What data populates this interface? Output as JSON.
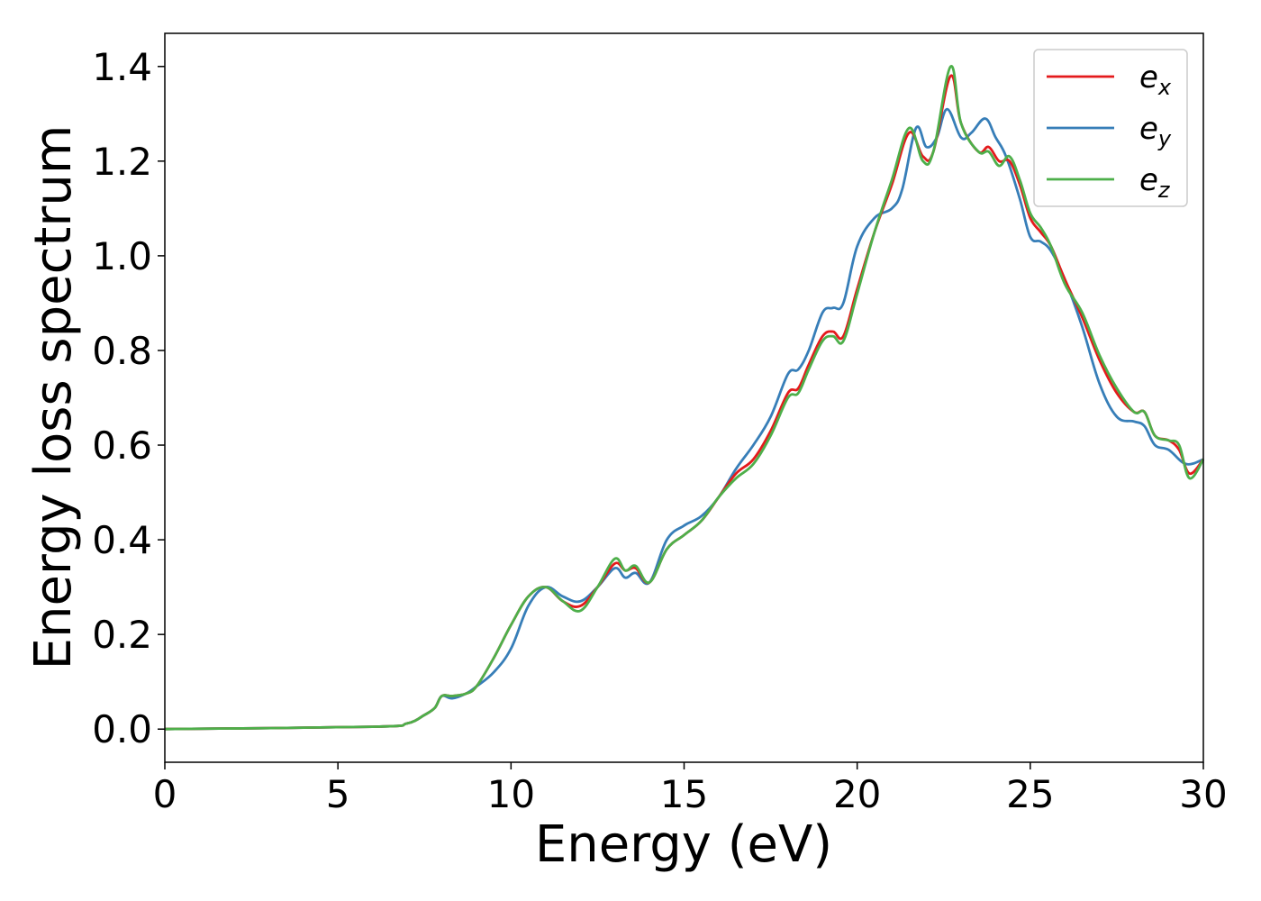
{
  "chart_data": {
    "type": "line",
    "title": "",
    "xlabel": "Energy (eV)",
    "ylabel": "Energy loss spectrum",
    "xlim": [
      0,
      30
    ],
    "ylim": [
      -0.07,
      1.47
    ],
    "xticks": [
      0,
      5,
      10,
      15,
      20,
      25,
      30
    ],
    "xtick_labels": [
      "0",
      "5",
      "10",
      "15",
      "20",
      "25",
      "30"
    ],
    "yticks": [
      0.0,
      0.2,
      0.4,
      0.6,
      0.8,
      1.0,
      1.2,
      1.4
    ],
    "ytick_labels": [
      "0.0",
      "0.2",
      "0.4",
      "0.6",
      "0.8",
      "1.0",
      "1.2",
      "1.4"
    ],
    "grid": false,
    "legend_position": "top-right",
    "series": [
      {
        "name": "e_x",
        "legend_base": "e",
        "legend_sub": "x",
        "color": "#e41a1c",
        "x": [
          0,
          6,
          7,
          7.5,
          7.8,
          8.0,
          8.3,
          8.7,
          9.0,
          9.5,
          10.0,
          10.5,
          11.0,
          11.5,
          12.0,
          12.5,
          13.0,
          13.3,
          13.6,
          14.0,
          14.5,
          15.0,
          15.5,
          16.0,
          16.5,
          17.0,
          17.5,
          18.0,
          18.3,
          18.6,
          19.0,
          19.3,
          19.6,
          20.0,
          20.5,
          21.0,
          21.5,
          21.9,
          22.2,
          22.7,
          23.0,
          23.5,
          23.8,
          24.1,
          24.4,
          24.7,
          25.0,
          25.3,
          25.6,
          26.0,
          26.5,
          27.0,
          27.5,
          28.0,
          28.3,
          28.6,
          29.0,
          29.3,
          29.6,
          30.0
        ],
        "y": [
          0.0,
          0.005,
          0.012,
          0.03,
          0.045,
          0.07,
          0.07,
          0.075,
          0.09,
          0.15,
          0.22,
          0.28,
          0.3,
          0.27,
          0.26,
          0.3,
          0.35,
          0.335,
          0.34,
          0.31,
          0.38,
          0.41,
          0.44,
          0.49,
          0.54,
          0.57,
          0.63,
          0.71,
          0.72,
          0.77,
          0.83,
          0.84,
          0.83,
          0.93,
          1.05,
          1.15,
          1.26,
          1.21,
          1.22,
          1.38,
          1.28,
          1.22,
          1.23,
          1.2,
          1.2,
          1.15,
          1.08,
          1.05,
          1.02,
          0.95,
          0.87,
          0.78,
          0.71,
          0.67,
          0.67,
          0.62,
          0.61,
          0.59,
          0.54,
          0.57
        ]
      },
      {
        "name": "e_y",
        "legend_base": "e",
        "legend_sub": "y",
        "color": "#377eb8",
        "x": [
          0,
          6,
          7,
          7.5,
          7.8,
          8.0,
          8.3,
          8.7,
          9.0,
          9.5,
          10.0,
          10.5,
          11.0,
          11.5,
          12.0,
          12.5,
          13.0,
          13.3,
          13.6,
          14.0,
          14.5,
          15.0,
          15.5,
          16.0,
          16.5,
          17.0,
          17.5,
          18.0,
          18.3,
          18.6,
          19.0,
          19.3,
          19.6,
          20.0,
          20.5,
          21.0,
          21.3,
          21.7,
          22.0,
          22.3,
          22.6,
          23.0,
          23.3,
          23.7,
          24.0,
          24.3,
          24.7,
          25.0,
          25.3,
          25.6,
          26.0,
          26.5,
          27.0,
          27.5,
          28.0,
          28.3,
          28.6,
          29.0,
          29.5,
          30.0
        ],
        "y": [
          0.0,
          0.005,
          0.012,
          0.03,
          0.045,
          0.07,
          0.065,
          0.075,
          0.09,
          0.12,
          0.17,
          0.26,
          0.3,
          0.28,
          0.27,
          0.3,
          0.34,
          0.32,
          0.33,
          0.31,
          0.4,
          0.43,
          0.45,
          0.49,
          0.55,
          0.6,
          0.66,
          0.75,
          0.76,
          0.8,
          0.88,
          0.89,
          0.9,
          1.02,
          1.08,
          1.1,
          1.14,
          1.27,
          1.23,
          1.25,
          1.31,
          1.25,
          1.26,
          1.29,
          1.25,
          1.21,
          1.12,
          1.04,
          1.03,
          1.01,
          0.95,
          0.85,
          0.73,
          0.66,
          0.65,
          0.64,
          0.6,
          0.59,
          0.56,
          0.57
        ]
      },
      {
        "name": "e_z",
        "legend_base": "e",
        "legend_sub": "z",
        "color": "#4daf4a",
        "x": [
          0,
          6,
          7,
          7.5,
          7.8,
          8.0,
          8.3,
          8.7,
          9.0,
          9.5,
          10.0,
          10.5,
          11.0,
          11.5,
          12.0,
          12.5,
          13.0,
          13.3,
          13.6,
          14.0,
          14.5,
          15.0,
          15.5,
          16.0,
          16.5,
          17.0,
          17.5,
          18.0,
          18.3,
          18.6,
          19.0,
          19.3,
          19.6,
          20.0,
          20.5,
          21.0,
          21.5,
          21.9,
          22.2,
          22.7,
          23.0,
          23.5,
          23.8,
          24.1,
          24.4,
          24.7,
          25.0,
          25.3,
          25.6,
          26.0,
          26.5,
          27.0,
          27.5,
          28.0,
          28.3,
          28.6,
          29.0,
          29.3,
          29.6,
          30.0
        ],
        "y": [
          0.0,
          0.005,
          0.012,
          0.03,
          0.045,
          0.07,
          0.07,
          0.075,
          0.09,
          0.15,
          0.22,
          0.28,
          0.3,
          0.27,
          0.25,
          0.3,
          0.36,
          0.335,
          0.345,
          0.31,
          0.38,
          0.41,
          0.44,
          0.49,
          0.53,
          0.56,
          0.62,
          0.7,
          0.71,
          0.76,
          0.82,
          0.83,
          0.82,
          0.92,
          1.05,
          1.16,
          1.27,
          1.2,
          1.22,
          1.4,
          1.28,
          1.22,
          1.22,
          1.19,
          1.21,
          1.16,
          1.09,
          1.06,
          1.02,
          0.94,
          0.88,
          0.79,
          0.72,
          0.67,
          0.67,
          0.62,
          0.61,
          0.6,
          0.53,
          0.57
        ]
      }
    ]
  }
}
